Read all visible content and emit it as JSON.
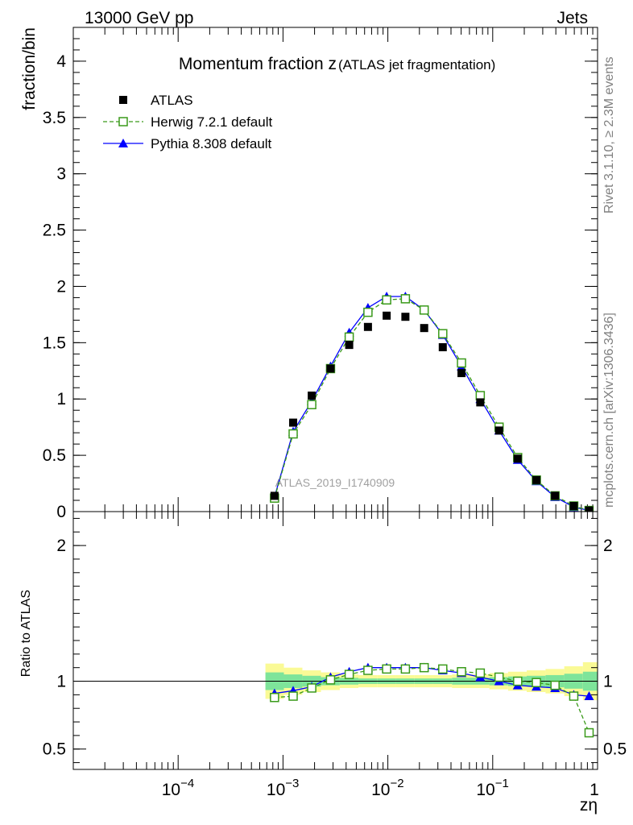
{
  "header": {
    "left": "13000 GeV pp",
    "right": "Jets"
  },
  "side_labels": {
    "rivet": "Rivet 3.1.10, ≥ 2.3M events",
    "mcplots": "mcplots.cern.ch [arXiv:1306.3436]"
  },
  "chart_data": [
    {
      "type": "scatter",
      "title_main": "Momentum fraction z",
      "title_sub": "(ATLAS jet fragmentation)",
      "analysis_label": "ATLAS_2019_I1740909",
      "xlabel": "zη",
      "ylabel": "fraction/bin",
      "x_scale": "log",
      "xlim": [
        1e-05,
        1
      ],
      "ylim": [
        0,
        4.3
      ],
      "x_ticks": [
        {
          "value": 0.0001,
          "base": "10",
          "exp": "−4"
        },
        {
          "value": 0.001,
          "base": "10",
          "exp": "−3"
        },
        {
          "value": 0.01,
          "base": "10",
          "exp": "−2"
        },
        {
          "value": 0.1,
          "base": "10",
          "exp": "−1"
        },
        {
          "value": 1,
          "base": "1",
          "exp": ""
        }
      ],
      "y_ticks": [
        {
          "value": 0,
          "label": "0"
        },
        {
          "value": 0.5,
          "label": "0.5"
        },
        {
          "value": 1,
          "label": "1"
        },
        {
          "value": 1.5,
          "label": "1.5"
        },
        {
          "value": 2,
          "label": "2"
        },
        {
          "value": 2.5,
          "label": "2.5"
        },
        {
          "value": 3,
          "label": "3"
        },
        {
          "value": 3.5,
          "label": "3.5"
        },
        {
          "value": 4,
          "label": "4"
        }
      ],
      "legend_position": "top-left",
      "x": [
        0.00083,
        0.00125,
        0.00188,
        0.00284,
        0.00428,
        0.00646,
        0.00974,
        0.0147,
        0.0222,
        0.0334,
        0.0504,
        0.0761,
        0.115,
        0.173,
        0.261,
        0.393,
        0.593,
        0.83
      ],
      "series": [
        {
          "name": "ATLAS",
          "color": "#000000",
          "marker": "square-filled",
          "line": "none",
          "values": [
            0.14,
            0.79,
            1.03,
            1.27,
            1.48,
            1.64,
            1.74,
            1.73,
            1.63,
            1.46,
            1.23,
            0.97,
            0.72,
            0.47,
            0.28,
            0.14,
            0.05,
            0.01
          ]
        },
        {
          "name": "Herwig 7.2.1 default",
          "color": "#3a9a1a",
          "marker": "square-open",
          "line": "dashed",
          "values": [
            0.12,
            0.69,
            0.95,
            1.27,
            1.55,
            1.77,
            1.88,
            1.89,
            1.79,
            1.58,
            1.32,
            1.03,
            0.75,
            0.48,
            0.28,
            0.14,
            0.05,
            0.01
          ]
        },
        {
          "name": "Pythia 8.308 default",
          "color": "#0000ff",
          "marker": "triangle-filled",
          "line": "solid",
          "values": [
            0.13,
            0.71,
            0.98,
            1.29,
            1.59,
            1.81,
            1.91,
            1.91,
            1.79,
            1.57,
            1.29,
            1.0,
            0.72,
            0.46,
            0.27,
            0.13,
            0.04,
            0.01
          ]
        }
      ]
    },
    {
      "type": "scatter",
      "ylabel": "Ratio to ATLAS",
      "xlabel": "zη",
      "x_scale": "log",
      "xlim": [
        1e-05,
        1
      ],
      "ylim": [
        0.35,
        2.25
      ],
      "y_ticks": [
        {
          "value": 0.5,
          "label": "0.5"
        },
        {
          "value": 1,
          "label": "1"
        },
        {
          "value": 2,
          "label": "2"
        }
      ],
      "reference_line": 1,
      "band_inner_color": "#7ee49a",
      "band_outer_color": "#fafa96",
      "band_x_edges": [
        0.00068,
        0.00102,
        0.00153,
        0.0023,
        0.00348,
        0.00524,
        0.0079,
        0.0119,
        0.018,
        0.0271,
        0.0409,
        0.0617,
        0.093,
        0.14,
        0.211,
        0.319,
        0.481,
        0.725,
        1.0
      ],
      "band_inner": [
        0.065,
        0.05,
        0.04,
        0.03,
        0.025,
        0.02,
        0.02,
        0.02,
        0.02,
        0.02,
        0.025,
        0.025,
        0.03,
        0.035,
        0.04,
        0.045,
        0.055,
        0.07
      ],
      "band_outer": [
        0.13,
        0.1,
        0.08,
        0.065,
        0.05,
        0.045,
        0.045,
        0.045,
        0.045,
        0.045,
        0.05,
        0.05,
        0.06,
        0.07,
        0.08,
        0.09,
        0.11,
        0.14
      ],
      "x": [
        0.00083,
        0.00125,
        0.00188,
        0.00284,
        0.00428,
        0.00646,
        0.00974,
        0.0147,
        0.0222,
        0.0334,
        0.0504,
        0.0761,
        0.115,
        0.173,
        0.261,
        0.393,
        0.593,
        0.83
      ],
      "series": [
        {
          "name": "Herwig 7.2.1 default",
          "color": "#3a9a1a",
          "marker": "square-open",
          "line": "dashed",
          "values": [
            0.88,
            0.89,
            0.95,
            1.01,
            1.05,
            1.08,
            1.09,
            1.09,
            1.1,
            1.09,
            1.07,
            1.06,
            1.03,
            1.0,
            0.99,
            0.97,
            0.89,
            0.62
          ]
        },
        {
          "name": "Pythia 8.308 default",
          "color": "#0000ff",
          "marker": "triangle-filled",
          "line": "solid",
          "values": [
            0.91,
            0.93,
            0.96,
            1.03,
            1.07,
            1.1,
            1.1,
            1.1,
            1.1,
            1.08,
            1.06,
            1.03,
            1.0,
            0.97,
            0.96,
            0.95,
            0.9,
            0.89
          ]
        }
      ]
    }
  ]
}
